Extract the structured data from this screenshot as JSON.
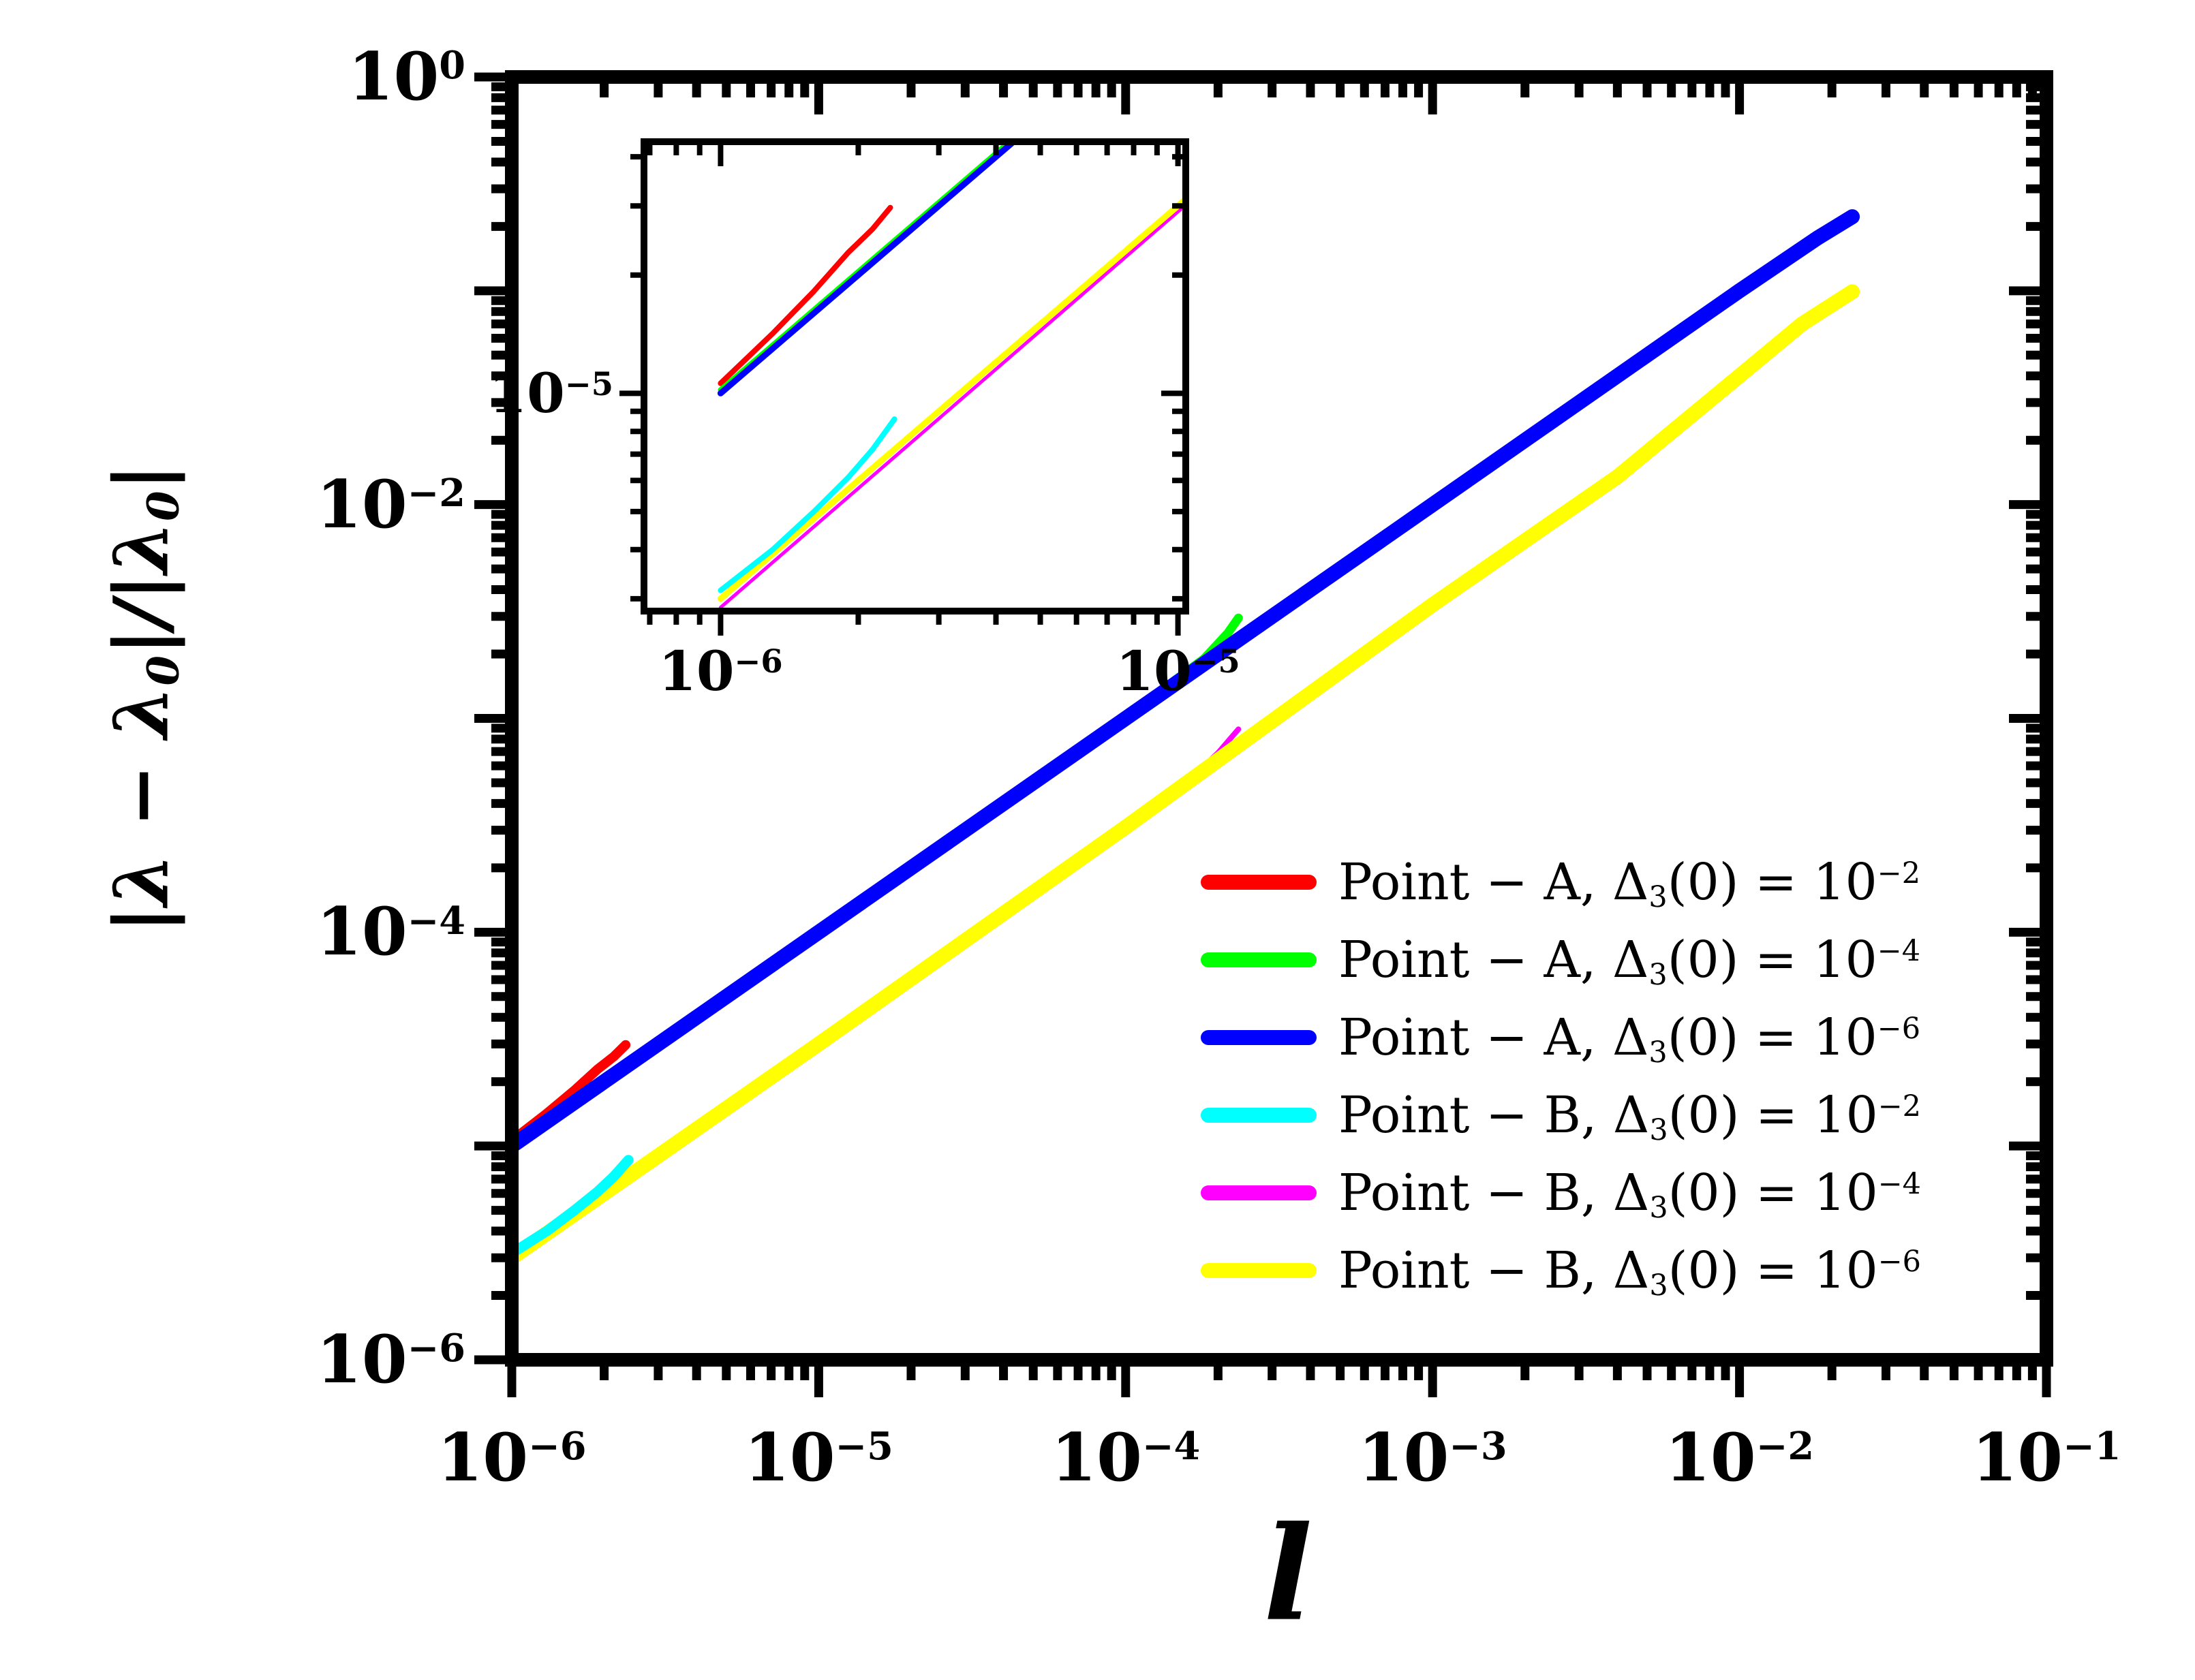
{
  "figure": {
    "background": "#ffffff",
    "frame_color": "#000000"
  },
  "axes": {
    "xlabel": "l",
    "ylabel": "|λ − λ₀|/|λ₀|",
    "x_ticks": [
      {
        "label": "10⁻⁶",
        "value": 1e-06
      },
      {
        "label": "10⁻⁵",
        "value": 1e-05
      },
      {
        "label": "10⁻⁴",
        "value": 0.0001
      },
      {
        "label": "10⁻³",
        "value": 0.001
      },
      {
        "label": "10⁻²",
        "value": 0.01
      },
      {
        "label": "10⁻¹",
        "value": 0.1
      }
    ],
    "y_ticks": [
      {
        "label": "10⁰",
        "value": 1
      },
      {
        "label": "10⁻²",
        "value": 0.01
      },
      {
        "label": "10⁻⁴",
        "value": 0.0001
      },
      {
        "label": "10⁻⁶",
        "value": 1e-06
      }
    ]
  },
  "inset_axes": {
    "x_ticks": [
      {
        "label": "10⁻⁶",
        "value": 1e-06
      },
      {
        "label": "10⁻⁵",
        "value": 1e-05
      }
    ],
    "y_ticks": [
      {
        "label": "10⁻⁵",
        "value": 1e-05
      }
    ]
  },
  "legend": {
    "entries": [
      {
        "label": "Point − A, Δ₃(0) = 10⁻²",
        "color": "#ff0000"
      },
      {
        "label": "Point − A, Δ₃(0) = 10⁻⁴",
        "color": "#00ff00"
      },
      {
        "label": "Point − A, Δ₃(0) = 10⁻⁶",
        "color": "#0000ff"
      },
      {
        "label": "Point − B, Δ₃(0) = 10⁻²",
        "color": "#00ffff"
      },
      {
        "label": "Point − B, Δ₃(0) = 10⁻⁴",
        "color": "#ff00ff"
      },
      {
        "label": "Point − B, Δ₃(0) = 10⁻⁶",
        "color": "#ffff00"
      }
    ]
  },
  "chart_data": {
    "type": "line",
    "log_x": true,
    "log_y": true,
    "title": "",
    "xlabel": "l",
    "ylabel": "|λ − λ₀|/|λ₀|",
    "xlim": [
      1e-06,
      0.1
    ],
    "ylim": [
      1e-06,
      1
    ],
    "grid": false,
    "legend_position": "center-right",
    "series": [
      {
        "id": "point-a-1e-2",
        "name": "Point − A, Δ₃(0) = 10⁻²",
        "color": "#ff0000",
        "width_main": 14,
        "width_inset": 8,
        "points": [
          [
            1e-06,
            1.06e-05
          ],
          [
            1.3e-06,
            1.42e-05
          ],
          [
            1.6e-06,
            1.82e-05
          ],
          [
            1.9e-06,
            2.28e-05
          ],
          [
            2.15e-06,
            2.62e-05
          ],
          [
            2.35e-06,
            2.97e-05
          ]
        ]
      },
      {
        "id": "point-a-1e-4",
        "name": "Point − A, Δ₃(0) = 10⁻⁴",
        "color": "#00ff00",
        "width_main": 13,
        "width_inset": 8,
        "points": [
          [
            1e-06,
            1.02e-05
          ],
          [
            1e-05,
            0.000102
          ],
          [
            0.0001,
            0.00102
          ],
          [
            0.00018,
            0.0019
          ],
          [
            0.000215,
            0.0025
          ],
          [
            0.000233,
            0.00295
          ]
        ]
      },
      {
        "id": "point-a-1e-6",
        "name": "Point − A, Δ₃(0) = 10⁻⁶",
        "color": "#0000ff",
        "width_main": 22,
        "width_inset": 9,
        "points": [
          [
            1e-06,
            1e-05
          ],
          [
            1e-05,
            0.0001
          ],
          [
            0.0001,
            0.001
          ],
          [
            0.001,
            0.01
          ],
          [
            0.01,
            0.1
          ],
          [
            0.018,
            0.177
          ],
          [
            0.0233,
            0.222
          ]
        ]
      },
      {
        "id": "point-b-1e-2",
        "name": "Point − B, Δ₃(0) = 10⁻²",
        "color": "#00ffff",
        "width_main": 15,
        "width_inset": 8,
        "points": [
          [
            1e-06,
            3.15e-06
          ],
          [
            1.3e-06,
            4e-06
          ],
          [
            1.6e-06,
            5e-06
          ],
          [
            1.9e-06,
            6.1e-06
          ],
          [
            2.15e-06,
            7.2e-06
          ],
          [
            2.4e-06,
            8.6e-06
          ]
        ]
      },
      {
        "id": "point-b-1e-4",
        "name": "Point − B, Δ₃(0) = 10⁻⁴",
        "color": "#ff00ff",
        "width_main": 8,
        "width_inset": 5,
        "points": [
          [
            1e-06,
            2.85e-06
          ],
          [
            1e-05,
            2.9e-05
          ],
          [
            8e-05,
            0.00024
          ],
          [
            0.00015,
            0.00047
          ],
          [
            0.0002,
            0.00069
          ],
          [
            0.000233,
            0.00089
          ]
        ]
      },
      {
        "id": "point-b-1e-6",
        "name": "Point − B, Δ₃(0) = 10⁻⁶",
        "color": "#ffff00",
        "width_main": 22,
        "width_inset": 9,
        "points": [
          [
            1e-06,
            3e-06
          ],
          [
            1e-05,
            3e-05
          ],
          [
            0.0001,
            0.00031
          ],
          [
            0.001,
            0.0034
          ],
          [
            0.004,
            0.0135
          ],
          [
            0.01,
            0.04
          ],
          [
            0.016,
            0.07
          ],
          [
            0.0233,
            0.099
          ]
        ]
      }
    ],
    "draw_order": [
      "point-a-1e-2",
      "point-a-1e-4",
      "point-a-1e-6",
      "point-b-1e-4",
      "point-b-1e-6",
      "point-b-1e-2"
    ],
    "inset": {
      "xlim": [
        6.8e-07,
        1.04e-05
      ],
      "ylim": [
        2.79e-06,
        4.37e-05
      ]
    }
  }
}
